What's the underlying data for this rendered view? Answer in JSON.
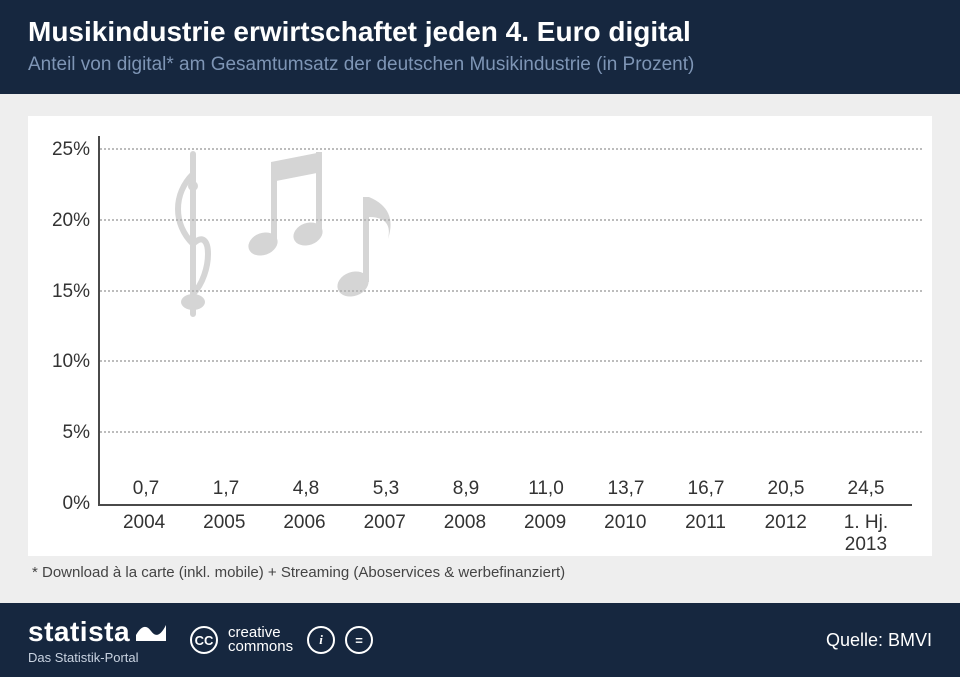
{
  "header": {
    "title": "Musikindustrie erwirtschaftet jeden 4. Euro digital",
    "subtitle": "Anteil von digital* am Gesamtumsatz der deutschen Musikindustrie (in Prozent)"
  },
  "chart": {
    "type": "bar",
    "categories": [
      "2004",
      "2005",
      "2006",
      "2007",
      "2008",
      "2009",
      "2010",
      "2011",
      "2012",
      "1. Hj.\n2013"
    ],
    "values": [
      0.7,
      1.7,
      4.8,
      5.3,
      8.9,
      11.0,
      13.7,
      16.7,
      20.5,
      24.5
    ],
    "value_labels": [
      "0,7",
      "1,7",
      "4,8",
      "5,3",
      "8,9",
      "11,0",
      "13,7",
      "16,7",
      "20,5",
      "24,5"
    ],
    "bar_color": "#1e93d1",
    "background_color": "#ffffff",
    "area_background": "#eeeeee",
    "grid_color": "#bcbcbc",
    "ylim": [
      0,
      26
    ],
    "ytick_positions": [
      0,
      5,
      10,
      15,
      20,
      25
    ],
    "ytick_labels": [
      "0%",
      "5%",
      "10%",
      "15%",
      "20%",
      "25%"
    ],
    "label_fontsize": 19,
    "bar_width": 0.72
  },
  "footnote": "* Download à la carte (inkl. mobile) + Streaming (Aboservices & werbefinanziert)",
  "footer": {
    "brand": "statista",
    "brand_tagline": "Das Statistik-Portal",
    "cc_label_top": "creative",
    "cc_label_bottom": "commons",
    "source_label": "Quelle: BMVI"
  },
  "colors": {
    "header_bg": "#16273f",
    "subtitle_text": "#7e95b5",
    "note_icon": "#b3b3b3"
  }
}
